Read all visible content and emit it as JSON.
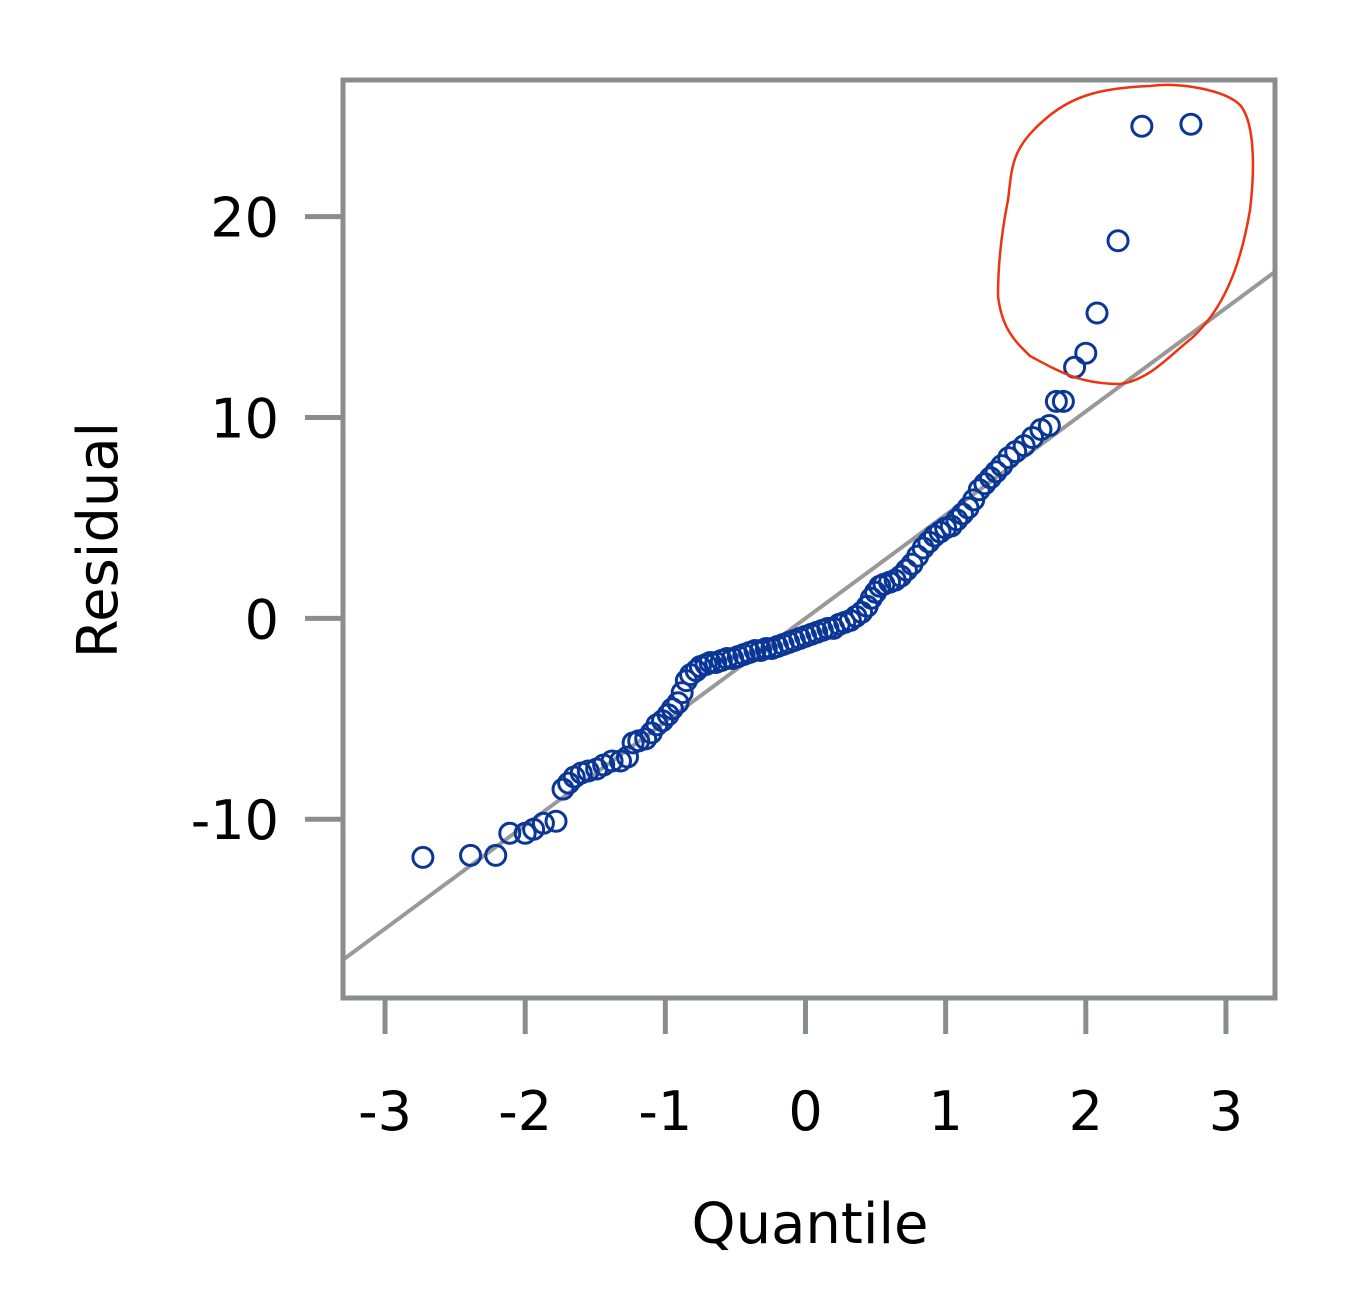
{
  "chart_data": {
    "type": "scatter",
    "title": "",
    "xlabel": "Quantile",
    "ylabel": "Residual",
    "xlim": [
      -3.3,
      3.35
    ],
    "ylim": [
      -18.9,
      26.8
    ],
    "x_ticks": [
      -3,
      -2,
      -1,
      0,
      1,
      2,
      3
    ],
    "x_tick_labels": [
      "-3",
      "-2",
      "-1",
      "0",
      "1",
      "2",
      "3"
    ],
    "y_ticks": [
      -10,
      0,
      10,
      20
    ],
    "y_tick_labels": [
      "-10",
      "0",
      "10",
      "20"
    ],
    "grid": false,
    "legend": "none",
    "reference_line": {
      "slope": 5.15,
      "intercept": 0,
      "color": "#999999"
    },
    "highlight_region": {
      "description": "outlier cluster",
      "x_range": [
        1.35,
        3.3
      ],
      "y_range": [
        11.8,
        26.8
      ],
      "color": "#ee3311"
    },
    "series": [
      {
        "marker": "open-circle",
        "color": "#0a3797",
        "points": [
          [
            -2.73,
            -11.9
          ],
          [
            -2.39,
            -11.8
          ],
          [
            -2.21,
            -11.8
          ],
          [
            -2.11,
            -10.7
          ],
          [
            -2.0,
            -10.7
          ],
          [
            -1.94,
            -10.5
          ],
          [
            -1.87,
            -10.2
          ],
          [
            -1.78,
            -10.1
          ],
          [
            -1.73,
            -8.5
          ],
          [
            -1.69,
            -8.2
          ],
          [
            -1.65,
            -7.9
          ],
          [
            -1.6,
            -7.7
          ],
          [
            -1.55,
            -7.6
          ],
          [
            -1.49,
            -7.5
          ],
          [
            -1.44,
            -7.3
          ],
          [
            -1.38,
            -7.1
          ],
          [
            -1.32,
            -7.1
          ],
          [
            -1.27,
            -6.9
          ],
          [
            -1.23,
            -6.2
          ],
          [
            -1.19,
            -6.1
          ],
          [
            -1.14,
            -6.0
          ],
          [
            -1.1,
            -5.7
          ],
          [
            -1.06,
            -5.3
          ],
          [
            -1.02,
            -5.1
          ],
          [
            -0.98,
            -4.8
          ],
          [
            -0.95,
            -4.5
          ],
          [
            -0.91,
            -4.2
          ],
          [
            -0.88,
            -3.7
          ],
          [
            -0.85,
            -3.1
          ],
          [
            -0.82,
            -2.8
          ],
          [
            -0.78,
            -2.6
          ],
          [
            -0.75,
            -2.4
          ],
          [
            -0.71,
            -2.3
          ],
          [
            -0.68,
            -2.2
          ],
          [
            -0.64,
            -2.2
          ],
          [
            -0.6,
            -2.1
          ],
          [
            -0.56,
            -2.0
          ],
          [
            -0.52,
            -2.0
          ],
          [
            -0.48,
            -1.9
          ],
          [
            -0.44,
            -1.8
          ],
          [
            -0.4,
            -1.7
          ],
          [
            -0.36,
            -1.6
          ],
          [
            -0.32,
            -1.6
          ],
          [
            -0.28,
            -1.5
          ],
          [
            -0.24,
            -1.5
          ],
          [
            -0.2,
            -1.4
          ],
          [
            -0.16,
            -1.3
          ],
          [
            -0.12,
            -1.2
          ],
          [
            -0.08,
            -1.1
          ],
          [
            -0.04,
            -1.0
          ],
          [
            0.0,
            -0.9
          ],
          [
            0.04,
            -0.8
          ],
          [
            0.08,
            -0.7
          ],
          [
            0.12,
            -0.6
          ],
          [
            0.16,
            -0.5
          ],
          [
            0.2,
            -0.5
          ],
          [
            0.24,
            -0.3
          ],
          [
            0.28,
            -0.2
          ],
          [
            0.32,
            -0.1
          ],
          [
            0.36,
            0.1
          ],
          [
            0.4,
            0.3
          ],
          [
            0.44,
            0.6
          ],
          [
            0.47,
            1.0
          ],
          [
            0.5,
            1.3
          ],
          [
            0.53,
            1.6
          ],
          [
            0.56,
            1.7
          ],
          [
            0.6,
            1.8
          ],
          [
            0.64,
            1.9
          ],
          [
            0.68,
            2.1
          ],
          [
            0.72,
            2.4
          ],
          [
            0.76,
            2.7
          ],
          [
            0.8,
            3.1
          ],
          [
            0.84,
            3.5
          ],
          [
            0.88,
            3.8
          ],
          [
            0.92,
            4.1
          ],
          [
            0.96,
            4.3
          ],
          [
            1.0,
            4.5
          ],
          [
            1.04,
            4.6
          ],
          [
            1.08,
            4.9
          ],
          [
            1.12,
            5.2
          ],
          [
            1.16,
            5.5
          ],
          [
            1.2,
            5.9
          ],
          [
            1.24,
            6.4
          ],
          [
            1.28,
            6.7
          ],
          [
            1.32,
            7.0
          ],
          [
            1.36,
            7.3
          ],
          [
            1.4,
            7.6
          ],
          [
            1.45,
            8.0
          ],
          [
            1.5,
            8.3
          ],
          [
            1.56,
            8.6
          ],
          [
            1.62,
            9.0
          ],
          [
            1.68,
            9.4
          ],
          [
            1.74,
            9.6
          ],
          [
            1.79,
            10.8
          ],
          [
            1.84,
            10.8
          ],
          [
            1.92,
            12.5
          ],
          [
            2.0,
            13.2
          ],
          [
            2.08,
            15.2
          ],
          [
            2.23,
            18.8
          ],
          [
            2.4,
            24.5
          ],
          [
            2.75,
            24.6
          ]
        ]
      }
    ]
  }
}
